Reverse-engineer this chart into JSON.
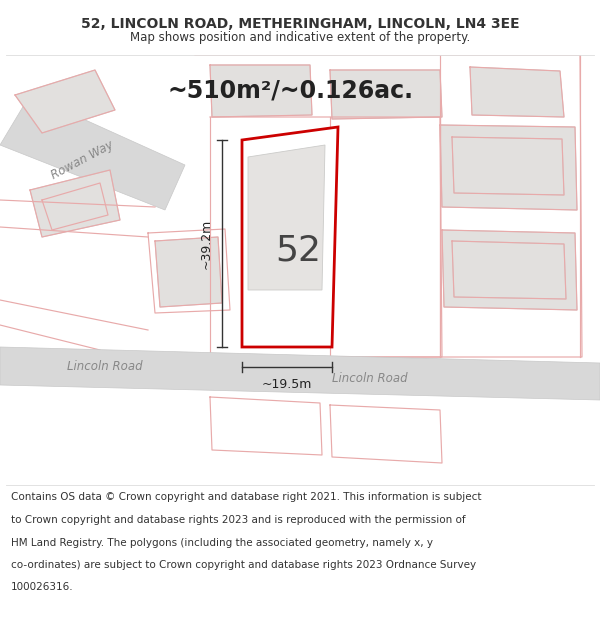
{
  "title_line1": "52, LINCOLN ROAD, METHERINGHAM, LINCOLN, LN4 3EE",
  "title_line2": "Map shows position and indicative extent of the property.",
  "area_text": "~510m²/~0.126ac.",
  "number_label": "52",
  "dim_width": "~19.5m",
  "dim_height": "~39.2m",
  "road_label_left": "Lincoln Road",
  "road_label_right": "Lincoln Road",
  "street_label": "Rowan Way",
  "footer_lines": [
    "Contains OS data © Crown copyright and database right 2021. This information is subject",
    "to Crown copyright and database rights 2023 and is reproduced with the permission of",
    "HM Land Registry. The polygons (including the associated geometry, namely x, y",
    "co-ordinates) are subject to Crown copyright and database rights 2023 Ordnance Survey",
    "100026316."
  ],
  "map_bg": "#f2f0ee",
  "road_fill": "#d8d8d8",
  "road_edge": "#c8c8c8",
  "plot_outline_color": "#cc0000",
  "plot_fill_color": "#ffffff",
  "building_fill": "#e2e0de",
  "building_edge": "#cccccc",
  "faint_line": "#e8aaaa",
  "dim_color": "#333333",
  "text_dark": "#333333",
  "road_text": "#888888",
  "title_fontsize": 10,
  "subtitle_fontsize": 8.5,
  "area_fontsize": 17,
  "number_fontsize": 26,
  "dim_fontsize": 9,
  "road_fontsize": 8.5,
  "footer_fontsize": 7.5,
  "street_fontsize": 8.5
}
